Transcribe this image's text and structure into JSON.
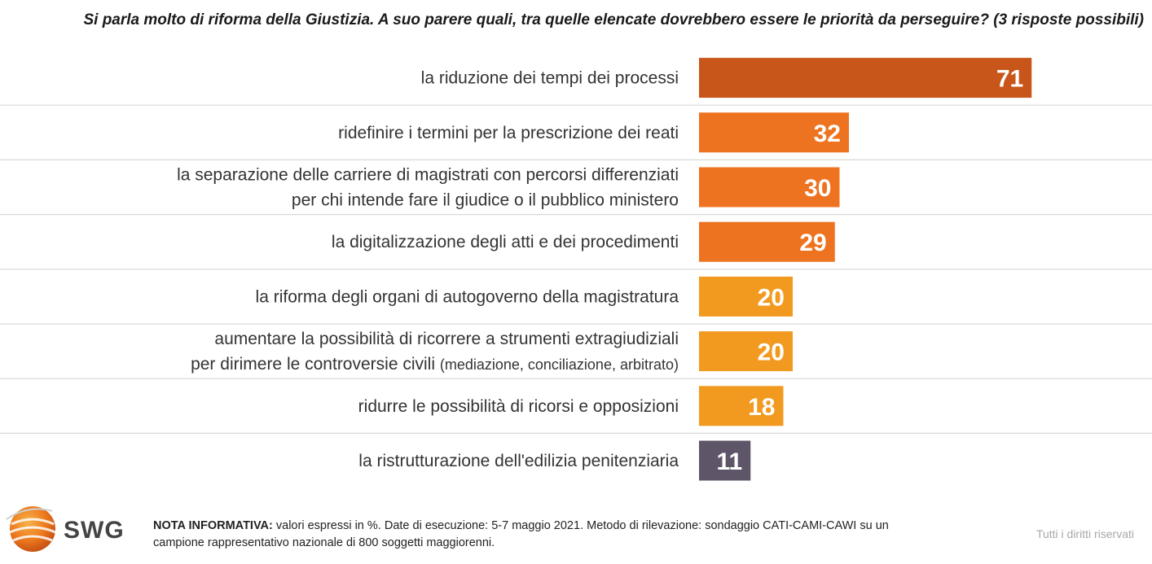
{
  "title": "Si parla molto di riforma della Giustizia. A suo parere quali, tra quelle elencate dovrebbero essere le priorità da perseguire? (3 risposte possibili)",
  "chart_data": {
    "type": "bar",
    "orientation": "horizontal",
    "title": "Si parla molto di riforma della Giustizia. A suo parere quali, tra quelle elencate dovrebbero essere le priorità da perseguire? (3 risposte possibili)",
    "categories": [
      [
        "la riduzione dei tempi dei processi"
      ],
      [
        "ridefinire i termini per la prescrizione dei reati"
      ],
      [
        "la separazione delle carriere di magistrati con percorsi differenziati",
        "per chi intende fare il giudice o il pubblico ministero"
      ],
      [
        "la digitalizzazione degli atti e dei procedimenti"
      ],
      [
        "la riforma degli organi di autogoverno della magistratura"
      ],
      [
        "aumentare la possibilità di ricorrere a strumenti extragiudiziali",
        "per dirimere le controversie civili |(mediazione, conciliazione, arbitrato)"
      ],
      [
        "ridurre le possibilità di ricorsi e opposizioni"
      ],
      [
        "la ristrutturazione dell'edilizia penitenziaria"
      ]
    ],
    "values": [
      71,
      32,
      30,
      29,
      20,
      20,
      18,
      11
    ],
    "colors": [
      "#C8561A",
      "#EE7320",
      "#EE7320",
      "#EE7320",
      "#F29A20",
      "#F29A20",
      "#F29A20",
      "#5E5668"
    ],
    "unit": "%",
    "xlim": [
      0,
      100
    ],
    "data_labels": true,
    "grid": false,
    "legend": "none"
  },
  "footer": {
    "logo_text": "SWG",
    "note_label": "NOTA INFORMATIVA:",
    "note_text": " valori espressi in %. Date di esecuzione: 5-7 maggio 2021. Metodo di rilevazione: sondaggio CATI-CAMI-CAWI su un campione rappresentativo nazionale di 800 soggetti maggiorenni.",
    "rights": "Tutti i diritti riservati"
  }
}
